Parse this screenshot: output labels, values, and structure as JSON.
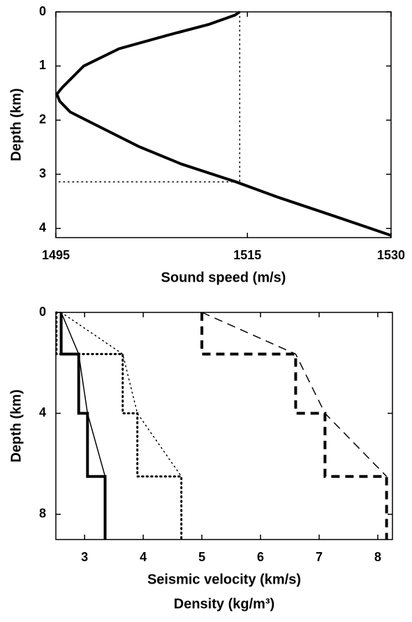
{
  "chart_data": [
    {
      "type": "line",
      "xlabel": "Sound speed (m/s)",
      "ylabel": "Depth (km)",
      "xlim": [
        1495,
        1530
      ],
      "xticks": [
        1495,
        1515,
        1530
      ],
      "ylim": [
        0,
        4.17
      ],
      "yticks": [
        0,
        1,
        2,
        3,
        4
      ],
      "y_inverted": true,
      "series": [
        {
          "color": "#000000",
          "linestyle": "solid",
          "linewidth": 4,
          "x": [
            1514.2,
            1513.7,
            1511.0,
            1506.7,
            1501.6,
            1497.9,
            1495.7,
            1495.1,
            1495.4,
            1496.5,
            1500.1,
            1503.7,
            1508.1,
            1513.8,
            1518.3,
            1524.2,
            1530
          ],
          "y": [
            0,
            0.06,
            0.23,
            0.43,
            0.68,
            1.0,
            1.39,
            1.52,
            1.65,
            1.85,
            2.17,
            2.49,
            2.81,
            3.14,
            3.43,
            3.78,
            4.13
          ]
        },
        {
          "color": "#000000",
          "linestyle": "dotted",
          "linewidth": 1.5,
          "x": [
            1514.2,
            1514.2,
            1495
          ],
          "y": [
            0,
            3.14,
            3.14
          ]
        }
      ]
    },
    {
      "type": "line",
      "xlabel": "Seismic velocity (km/s)",
      "xlabel2": "Density (kg/m³)",
      "ylabel": "Depth (km)",
      "xlim": [
        2.51,
        8.25
      ],
      "xticks": [
        3,
        4,
        5,
        6,
        7,
        8
      ],
      "ylim": [
        0,
        9
      ],
      "yticks": [
        0,
        4,
        8
      ],
      "y_inverted": true,
      "series": [
        {
          "color": "#000000",
          "linestyle": "solid",
          "linewidth": 4,
          "x": [
            2.6,
            2.6,
            2.9,
            2.9,
            3.05,
            3.05,
            3.35,
            3.35
          ],
          "y": [
            0,
            1.65,
            1.65,
            4,
            4,
            6.5,
            6.5,
            9
          ]
        },
        {
          "color": "#000000",
          "linestyle": "solid",
          "linewidth": 1.5,
          "x": [
            2.6,
            2.9,
            3.05,
            3.35
          ],
          "y": [
            0,
            1.65,
            4,
            6.5
          ]
        },
        {
          "color": "#000000",
          "linestyle": "dotted",
          "linewidth": 3,
          "x": [
            2.52,
            2.52,
            3.65,
            3.65,
            3.9,
            3.9,
            4.65,
            4.65
          ],
          "y": [
            0,
            1.65,
            1.65,
            4,
            4,
            6.5,
            6.5,
            9
          ]
        },
        {
          "color": "#000000",
          "linestyle": "dotted",
          "linewidth": 1.5,
          "x": [
            2.6,
            3.65,
            3.9,
            4.65
          ],
          "y": [
            0,
            1.65,
            4,
            6.5
          ]
        },
        {
          "color": "#000000",
          "linestyle": "dashed",
          "linewidth": 4,
          "x": [
            5,
            5,
            6.6,
            6.6,
            7.1,
            7.1,
            8.15,
            8.15
          ],
          "y": [
            0,
            1.65,
            1.65,
            4,
            4,
            6.5,
            6.5,
            9
          ]
        },
        {
          "color": "#000000",
          "linestyle": "dashed",
          "linewidth": 1.5,
          "x": [
            5,
            6.6,
            7.1,
            8.15
          ],
          "y": [
            0,
            1.65,
            4,
            6.5
          ]
        }
      ]
    }
  ]
}
